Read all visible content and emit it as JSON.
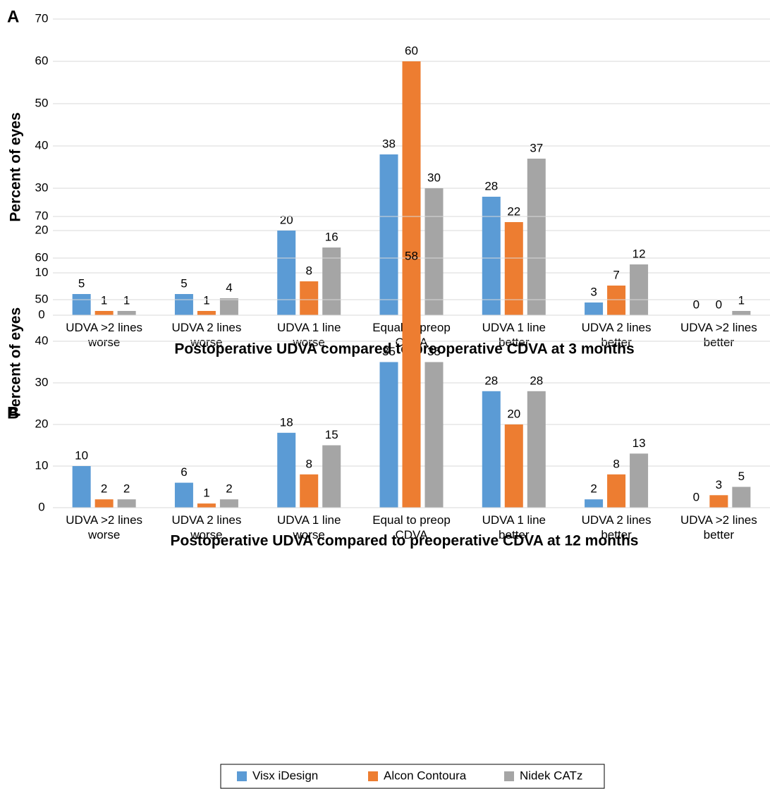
{
  "chart_data": [
    {
      "type": "bar",
      "panel_label": "A",
      "ylabel": "Percent of eyes",
      "xlabel": "Postoperative UDVA compared to preoperative CDVA at 3 months",
      "categories": [
        "UDVA >2 lines\nworse",
        "UDVA 2 lines\nworse",
        "UDVA 1 line\nworse",
        "Equal to preop\nCDVA",
        "UDVA 1 line\nbetter",
        "UDVA 2 lines\nbetter",
        "UDVA >2 lines\nbetter"
      ],
      "series": [
        {
          "color": "#5b9bd5",
          "values": [
            5,
            5,
            20,
            38,
            28,
            3,
            0
          ]
        },
        {
          "color": "#ed7d31",
          "values": [
            1,
            1,
            8,
            60,
            22,
            7,
            0
          ]
        },
        {
          "color": "#a5a5a5",
          "values": [
            1,
            4,
            16,
            30,
            37,
            12,
            1
          ]
        }
      ],
      "ylim": [
        0,
        70
      ],
      "yticks": [
        0,
        10,
        20,
        30,
        40,
        50,
        60,
        70
      ],
      "grid": true
    },
    {
      "type": "bar",
      "panel_label": "B",
      "ylabel": "Percent of eyes",
      "xlabel": "Postoperative UDVA compared to preoperative CDVA at 12 months",
      "categories": [
        "UDVA >2 lines\nworse",
        "UDVA 2 lines\nworse",
        "UDVA 1 line\nworse",
        "Equal to preop\nCDVA",
        "UDVA 1 line\nbetter",
        "UDVA 2 lines\nbetter",
        "UDVA >2 lines\nbetter"
      ],
      "series": [
        {
          "name": "Visx iDesign",
          "color": "#5b9bd5",
          "values": [
            10,
            6,
            18,
            35,
            28,
            2,
            0
          ]
        },
        {
          "name": "Alcon Contoura",
          "color": "#ed7d31",
          "values": [
            2,
            1,
            8,
            58,
            20,
            8,
            3
          ]
        },
        {
          "name": "Nidek CATz",
          "color": "#a5a5a5",
          "values": [
            2,
            2,
            15,
            35,
            28,
            13,
            5
          ]
        }
      ],
      "ylim": [
        0,
        70
      ],
      "yticks": [
        0,
        10,
        20,
        30,
        40,
        50,
        60,
        70
      ],
      "grid": true
    }
  ]
}
